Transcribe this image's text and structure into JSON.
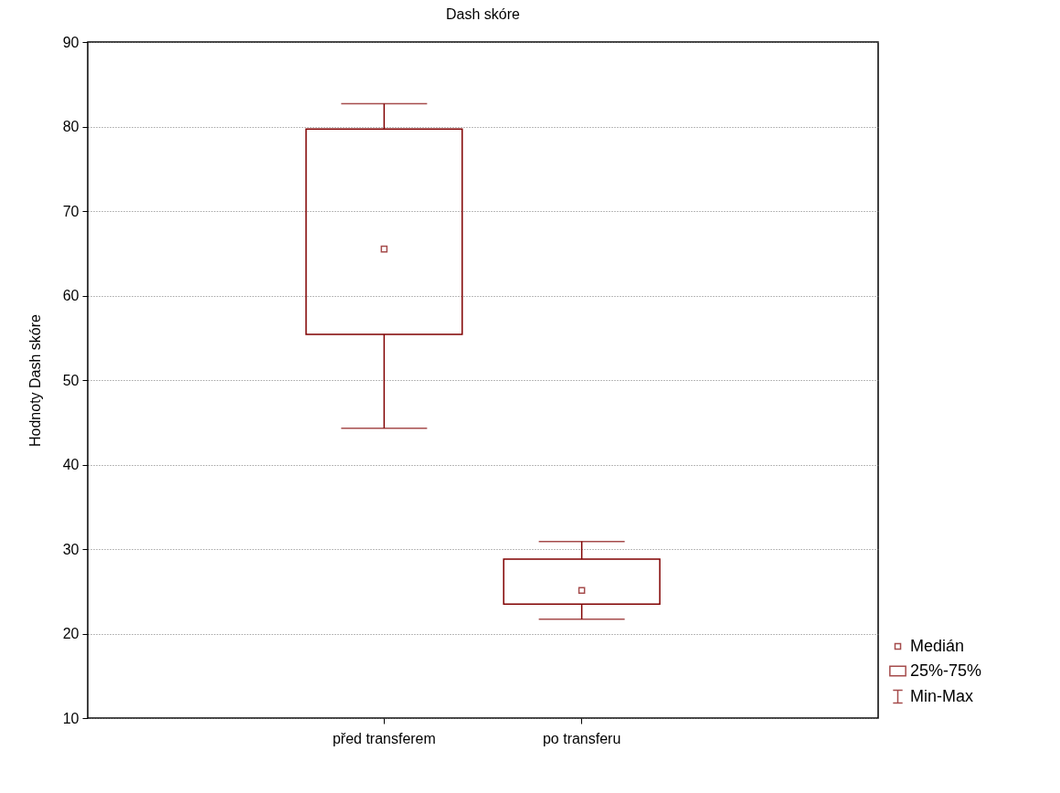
{
  "chart_data": {
    "type": "box",
    "title": "Dash skóre",
    "ylabel": "Hodnoty Dash skóre",
    "categories": [
      "před transferem",
      "po transferu"
    ],
    "series": [
      {
        "color": "#800000",
        "boxes": [
          {
            "low": 44.3,
            "q1": 55.4,
            "median": 65.5,
            "q3": 79.7,
            "high": 82.7
          },
          {
            "low": 21.7,
            "q1": 23.5,
            "median": 25.1,
            "q3": 28.8,
            "high": 30.9
          }
        ]
      }
    ],
    "ylim": [
      10,
      90
    ],
    "yticks": [
      10,
      20,
      30,
      40,
      50,
      60,
      70,
      80,
      90
    ],
    "grid": "y",
    "marker": "square",
    "annotations": [
      "Medián",
      "25%-75%",
      "Min-Max"
    ]
  }
}
